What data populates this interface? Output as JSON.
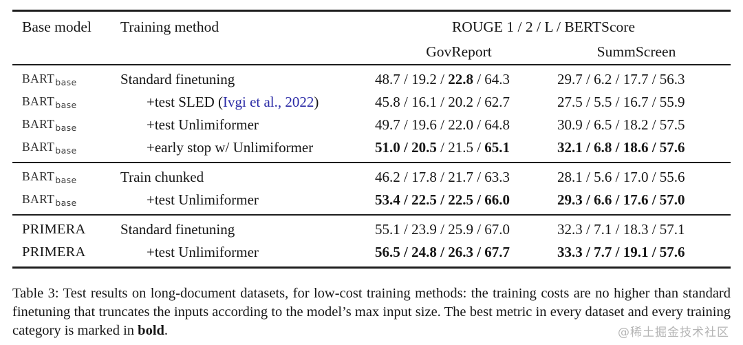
{
  "table": {
    "header": {
      "base_model": "Base model",
      "training_method": "Training method",
      "metrics": "ROUGE 1 / 2 / L / BERTScore",
      "datasets": [
        "GovReport",
        "SummScreen"
      ]
    },
    "separator": " / ",
    "groups": [
      {
        "rows": [
          {
            "model": "BART",
            "model_sub": "base",
            "method": "Standard finetuning",
            "indent": false,
            "gov": [
              "48.7",
              "19.2",
              "22.8",
              "64.3"
            ],
            "gov_bold": [
              false,
              false,
              true,
              false
            ],
            "summ": [
              "29.7",
              "6.2",
              "17.7",
              "56.3"
            ],
            "summ_bold": [
              false,
              false,
              false,
              false
            ]
          },
          {
            "model": "BART",
            "model_sub": "base",
            "method": "+test SLED (",
            "cite": "Ivgi et al., 2022",
            "method_after": ")",
            "indent": true,
            "gov": [
              "45.8",
              "16.1",
              "20.2",
              "62.7"
            ],
            "gov_bold": [
              false,
              false,
              false,
              false
            ],
            "summ": [
              "27.5",
              "5.5",
              "16.7",
              "55.9"
            ],
            "summ_bold": [
              false,
              false,
              false,
              false
            ]
          },
          {
            "model": "BART",
            "model_sub": "base",
            "method": "+test Unlimiformer",
            "indent": true,
            "gov": [
              "49.7",
              "19.6",
              "22.0",
              "64.8"
            ],
            "gov_bold": [
              false,
              false,
              false,
              false
            ],
            "summ": [
              "30.9",
              "6.5",
              "18.2",
              "57.5"
            ],
            "summ_bold": [
              false,
              false,
              false,
              false
            ]
          },
          {
            "model": "BART",
            "model_sub": "base",
            "method": "+early stop w/ Unlimiformer",
            "indent": true,
            "gov": [
              "51.0",
              "20.5",
              "21.5",
              "65.1"
            ],
            "gov_bold": [
              true,
              true,
              false,
              true
            ],
            "summ": [
              "32.1",
              "6.8",
              "18.6",
              "57.6"
            ],
            "summ_bold": [
              true,
              true,
              true,
              true
            ]
          }
        ]
      },
      {
        "rows": [
          {
            "model": "BART",
            "model_sub": "base",
            "method": "Train chunked",
            "indent": false,
            "gov": [
              "46.2",
              "17.8",
              "21.7",
              "63.3"
            ],
            "gov_bold": [
              false,
              false,
              false,
              false
            ],
            "summ": [
              "28.1",
              "5.6",
              "17.0",
              "55.6"
            ],
            "summ_bold": [
              false,
              false,
              false,
              false
            ]
          },
          {
            "model": "BART",
            "model_sub": "base",
            "method": "+test Unlimiformer",
            "indent": true,
            "gov": [
              "53.4",
              "22.5",
              "22.5",
              "66.0"
            ],
            "gov_bold": [
              true,
              true,
              true,
              true
            ],
            "summ": [
              "29.3",
              "6.6",
              "17.6",
              "57.0"
            ],
            "summ_bold": [
              true,
              true,
              true,
              true
            ]
          }
        ]
      },
      {
        "rows": [
          {
            "model": "PRIMERA",
            "model_sub": "",
            "method": "Standard finetuning",
            "indent": false,
            "gov": [
              "55.1",
              "23.9",
              "25.9",
              "67.0"
            ],
            "gov_bold": [
              false,
              false,
              false,
              false
            ],
            "summ": [
              "32.3",
              "7.1",
              "18.3",
              "57.1"
            ],
            "summ_bold": [
              false,
              false,
              false,
              false
            ]
          },
          {
            "model": "PRIMERA",
            "model_sub": "",
            "method": "+test Unlimiformer",
            "indent": true,
            "gov": [
              "56.5",
              "24.8",
              "26.3",
              "67.7"
            ],
            "gov_bold": [
              true,
              true,
              true,
              true
            ],
            "summ": [
              "33.3",
              "7.7",
              "19.1",
              "57.6"
            ],
            "summ_bold": [
              true,
              true,
              true,
              true
            ]
          }
        ]
      }
    ]
  },
  "caption": {
    "prefix": "Table 3: Test results on long-document datasets, for low-cost training methods: the training costs are no higher than standard finetuning that truncates the inputs according to the model’s max input size. The best metric in every dataset and every training category is marked in ",
    "bold_word": "bold",
    "suffix": "."
  },
  "watermark": "@稀土掘金技术社区",
  "colors": {
    "citation_blue": "#2b2ba6",
    "text": "#161616",
    "rule": "#1d1d1d",
    "watermark_gray": "#b5b5b5"
  }
}
